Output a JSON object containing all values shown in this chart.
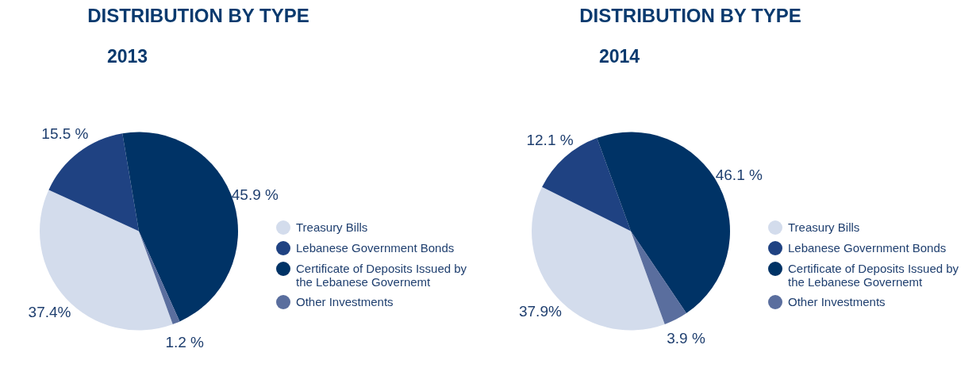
{
  "chart_data": [
    {
      "type": "pie",
      "title": "DISTRIBUTION BY TYPE",
      "subtitle": "2013",
      "categories": [
        "Treasury Bills",
        "Lebanese Government Bonds",
        "Certificate of Deposits Issued by the Lebanese Governemt",
        "Other Investments"
      ],
      "values": [
        37.4,
        15.5,
        45.9,
        1.2
      ],
      "value_labels": [
        "37.4%",
        "15.5 %",
        "45.9 %",
        "1.2 %"
      ],
      "colors": [
        "#d3dcec",
        "#1f4282",
        "#003366",
        "#5a6e9e"
      ],
      "legend": "right"
    },
    {
      "type": "pie",
      "title": "DISTRIBUTION BY TYPE",
      "subtitle": "2014",
      "categories": [
        "Treasury Bills",
        "Lebanese Government Bonds",
        "Certificate of Deposits Issued by the Lebanese Governemt",
        "Other Investments"
      ],
      "values": [
        37.9,
        12.1,
        46.1,
        3.9
      ],
      "value_labels": [
        "37.9%",
        "12.1 %",
        "46.1 %",
        "3.9 %"
      ],
      "colors": [
        "#d3dcec",
        "#1f4282",
        "#003366",
        "#5a6e9e"
      ],
      "legend": "right"
    }
  ]
}
